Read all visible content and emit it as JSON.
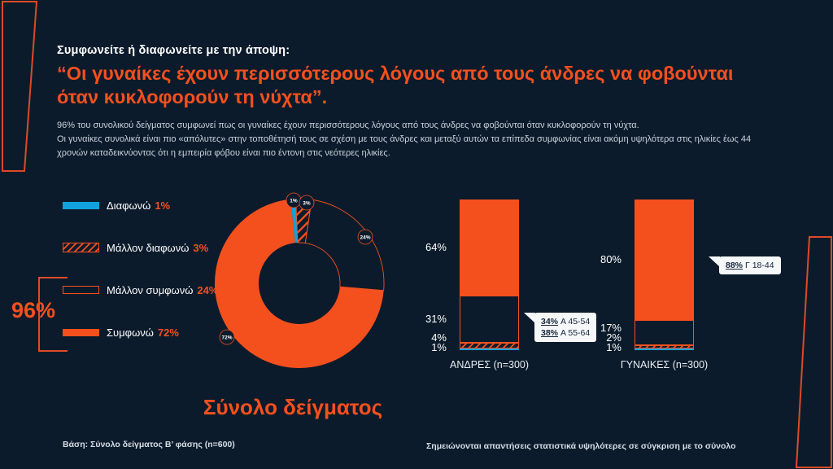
{
  "header": {
    "kicker": "Συμφωνείτε ή διαφωνείτε με την άποψη:",
    "headline": "“Οι γυναίκες έχουν περισσότερους λόγους από τους άνδρες να φοβούνται όταν κυκλοφορούν τη νύχτα”.",
    "body_line1": "96% του συνολικού δείγματος συμφωνεί πως οι γυναίκες έχουν περισσότερους λόγους από τους άνδρες να φοβούνται όταν κυκλοφορούν τη νύχτα.",
    "body_line2": "Οι γυναίκες συνολικά είναι πιο «απόλυτες» στην τοποθέτησή τους σε σχέση με τους άνδρες και μεταξύ αυτών τα επίπεδα συμφωνίας είναι ακόμη υψηλότερα στις ηλικίες έως 44 χρονών καταδεικνύοντας ότι η εμπειρία φόβου είναι πιο έντονη στις νεότερες ηλικίες."
  },
  "highlight": {
    "value": "96%"
  },
  "chart_data": {
    "type": "donut",
    "title": "Σύνολο δείγματος",
    "categories": [
      "Διαφωνώ",
      "Μάλλον διαφωνώ",
      "Μάλλον συμφωνώ",
      "Συμφωνώ"
    ],
    "total_values": [
      1,
      3,
      24,
      72
    ],
    "agree_total_pct": 96,
    "legend": [
      {
        "label": "Διαφωνώ",
        "pct": "1%"
      },
      {
        "label": "Μάλλον διαφωνώ",
        "pct": "3%"
      },
      {
        "label": "Μάλλον συμφωνώ",
        "pct": "24%"
      },
      {
        "label": "Συμφωνώ",
        "pct": "72%"
      }
    ],
    "bars": [
      {
        "label": "ΑΝΔΡΕΣ (n=300)",
        "values": [
          1,
          4,
          31,
          64
        ],
        "callouts": [
          {
            "pct": "34%",
            "group": "Α 45-54"
          },
          {
            "pct": "38%",
            "group": "Α 55-64"
          }
        ]
      },
      {
        "label": "ΓΥΝΑΙΚΕΣ (n=300)",
        "values": [
          1,
          2,
          17,
          80
        ],
        "callouts": [
          {
            "pct": "88%",
            "group": "Γ 18-44"
          }
        ]
      }
    ]
  },
  "footnotes": {
    "base": "Βάση: Σύνολο δείγματος Β’ φάσης (n=600)",
    "note": "Σημειώνονται απαντήσεις στατιστικά υψηλότερες σε σύγκριση με το σύνολο"
  },
  "colors": {
    "background": "#0C1B2B",
    "orange": "#F4501E",
    "blue": "#12A1DC",
    "frame_stroke": "#DC4A26",
    "callout_bg": "#F5F7F9",
    "callout_text": "#16263C"
  }
}
